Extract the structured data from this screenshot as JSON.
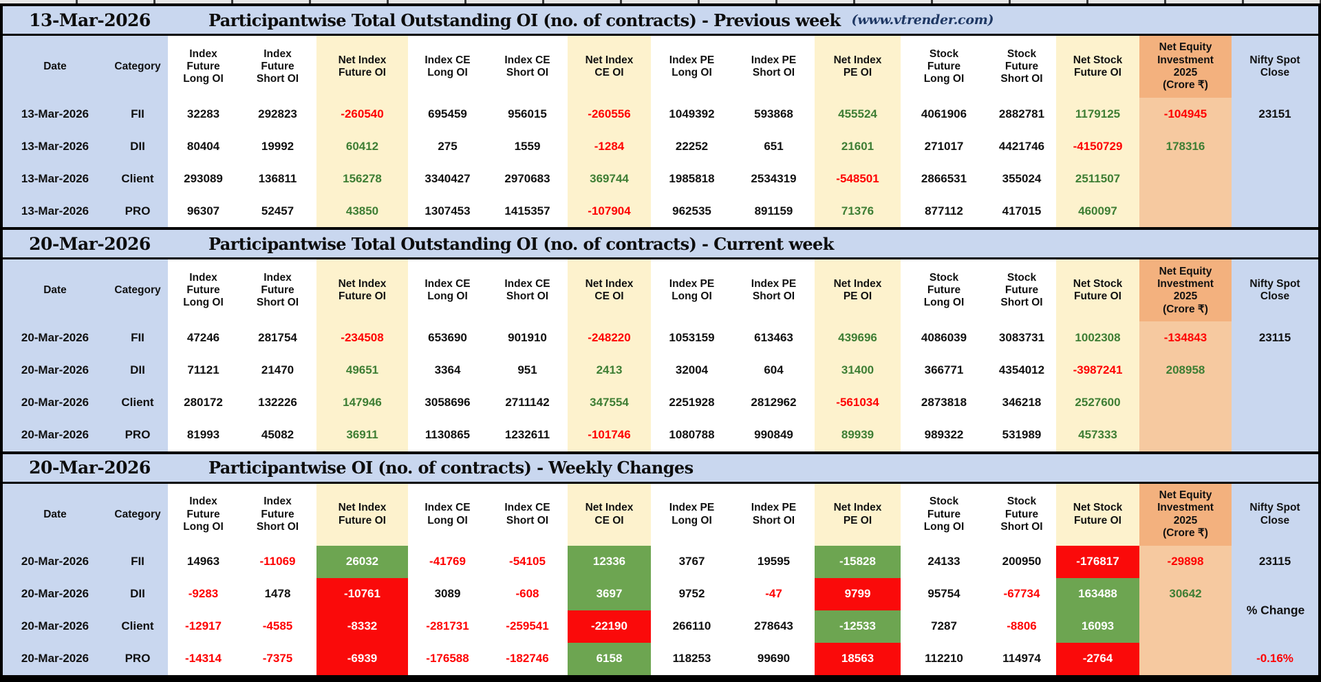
{
  "palette": {
    "band_blue": "#c9d7ef",
    "cream": "#fdf2cd",
    "orange_header": "#f3b17e",
    "orange_body": "#f6c9a0",
    "red_text": "#fe0000",
    "green_text": "#3e7e34",
    "green_bg": "#6da551",
    "red_bg": "#fa0a0a",
    "black_text": "#111111",
    "white_text": "#ffffff"
  },
  "columns": [
    {
      "key": "date",
      "label": "Date",
      "hbg": "blue",
      "bbg": "blue"
    },
    {
      "key": "category",
      "label": "Category",
      "hbg": "blue",
      "bbg": "blue"
    },
    {
      "key": "index-future-long-oi",
      "label": "Index\nFuture\nLong OI",
      "hbg": "white",
      "bbg": "white"
    },
    {
      "key": "index-future-short-oi",
      "label": "Index\nFuture\nShort OI",
      "hbg": "white",
      "bbg": "white"
    },
    {
      "key": "net-index-future-oi",
      "label": "Net Index\nFuture OI",
      "hbg": "cream",
      "bbg": "cream"
    },
    {
      "key": "index-ce-long-oi",
      "label": "Index CE\nLong OI",
      "hbg": "white",
      "bbg": "white"
    },
    {
      "key": "index-ce-short-oi",
      "label": "Index CE\nShort OI",
      "hbg": "white",
      "bbg": "white"
    },
    {
      "key": "net-index-ce-oi",
      "label": "Net Index\nCE OI",
      "hbg": "cream",
      "bbg": "cream"
    },
    {
      "key": "index-pe-long-oi",
      "label": "Index PE\nLong OI",
      "hbg": "white",
      "bbg": "white"
    },
    {
      "key": "index-pe-short-oi",
      "label": "Index PE\nShort OI",
      "hbg": "white",
      "bbg": "white"
    },
    {
      "key": "net-index-pe-oi",
      "label": "Net Index\nPE OI",
      "hbg": "cream",
      "bbg": "cream"
    },
    {
      "key": "stock-future-long-oi",
      "label": "Stock\nFuture\nLong OI",
      "hbg": "white",
      "bbg": "white"
    },
    {
      "key": "stock-future-short-oi",
      "label": "Stock\nFuture\nShort OI",
      "hbg": "white",
      "bbg": "white"
    },
    {
      "key": "net-stock-future-oi",
      "label": "Net Stock\nFuture OI",
      "hbg": "cream",
      "bbg": "cream"
    },
    {
      "key": "net-equity-investment",
      "label": "Net Equity\nInvestment\n2025\n(Crore ₹)",
      "hbg": "orangeh",
      "bbg": "orangeb"
    },
    {
      "key": "nifty-spot-close",
      "label": "Nifty Spot\nClose",
      "hbg": "blue",
      "bbg": "blue"
    }
  ],
  "sections": [
    {
      "id": "previous-week",
      "date": "13-Mar-2026",
      "title": "Participantwise Total Outstanding OI (no. of contracts) - Previous week",
      "source": "(www.vtrender.com)",
      "rows": [
        {
          "date": "13-Mar-2026",
          "category": "FII",
          "cells": [
            [
              "32283",
              "k"
            ],
            [
              "292823",
              "k"
            ],
            [
              "-260540",
              "r"
            ],
            [
              "695459",
              "k"
            ],
            [
              "956015",
              "k"
            ],
            [
              "-260556",
              "r"
            ],
            [
              "1049392",
              "k"
            ],
            [
              "593868",
              "k"
            ],
            [
              "455524",
              "g"
            ],
            [
              "4061906",
              "k"
            ],
            [
              "2882781",
              "k"
            ],
            [
              "1179125",
              "g"
            ],
            [
              "-104945",
              "r"
            ],
            [
              "23151",
              "k"
            ]
          ]
        },
        {
          "date": "13-Mar-2026",
          "category": "DII",
          "cells": [
            [
              "80404",
              "k"
            ],
            [
              "19992",
              "k"
            ],
            [
              "60412",
              "g"
            ],
            [
              "275",
              "k"
            ],
            [
              "1559",
              "k"
            ],
            [
              "-1284",
              "r"
            ],
            [
              "22252",
              "k"
            ],
            [
              "651",
              "k"
            ],
            [
              "21601",
              "g"
            ],
            [
              "271017",
              "k"
            ],
            [
              "4421746",
              "k"
            ],
            [
              "-4150729",
              "r"
            ],
            [
              "178316",
              "g"
            ],
            [
              "",
              ""
            ]
          ]
        },
        {
          "date": "13-Mar-2026",
          "category": "Client",
          "cells": [
            [
              "293089",
              "k"
            ],
            [
              "136811",
              "k"
            ],
            [
              "156278",
              "g"
            ],
            [
              "3340427",
              "k"
            ],
            [
              "2970683",
              "k"
            ],
            [
              "369744",
              "g"
            ],
            [
              "1985818",
              "k"
            ],
            [
              "2534319",
              "k"
            ],
            [
              "-548501",
              "r"
            ],
            [
              "2866531",
              "k"
            ],
            [
              "355024",
              "k"
            ],
            [
              "2511507",
              "g"
            ],
            [
              "",
              ""
            ],
            [
              "",
              ""
            ]
          ]
        },
        {
          "date": "13-Mar-2026",
          "category": "PRO",
          "cells": [
            [
              "96307",
              "k"
            ],
            [
              "52457",
              "k"
            ],
            [
              "43850",
              "g"
            ],
            [
              "1307453",
              "k"
            ],
            [
              "1415357",
              "k"
            ],
            [
              "-107904",
              "r"
            ],
            [
              "962535",
              "k"
            ],
            [
              "891159",
              "k"
            ],
            [
              "71376",
              "g"
            ],
            [
              "877112",
              "k"
            ],
            [
              "417015",
              "k"
            ],
            [
              "460097",
              "g"
            ],
            [
              "",
              ""
            ],
            [
              "",
              ""
            ]
          ]
        }
      ]
    },
    {
      "id": "current-week",
      "date": "20-Mar-2026",
      "title": "Participantwise Total Outstanding OI (no. of contracts) - Current week",
      "source": "",
      "rows": [
        {
          "date": "20-Mar-2026",
          "category": "FII",
          "cells": [
            [
              "47246",
              "k"
            ],
            [
              "281754",
              "k"
            ],
            [
              "-234508",
              "r"
            ],
            [
              "653690",
              "k"
            ],
            [
              "901910",
              "k"
            ],
            [
              "-248220",
              "r"
            ],
            [
              "1053159",
              "k"
            ],
            [
              "613463",
              "k"
            ],
            [
              "439696",
              "g"
            ],
            [
              "4086039",
              "k"
            ],
            [
              "3083731",
              "k"
            ],
            [
              "1002308",
              "g"
            ],
            [
              "-134843",
              "r"
            ],
            [
              "23115",
              "k"
            ]
          ]
        },
        {
          "date": "20-Mar-2026",
          "category": "DII",
          "cells": [
            [
              "71121",
              "k"
            ],
            [
              "21470",
              "k"
            ],
            [
              "49651",
              "g"
            ],
            [
              "3364",
              "k"
            ],
            [
              "951",
              "k"
            ],
            [
              "2413",
              "g"
            ],
            [
              "32004",
              "k"
            ],
            [
              "604",
              "k"
            ],
            [
              "31400",
              "g"
            ],
            [
              "366771",
              "k"
            ],
            [
              "4354012",
              "k"
            ],
            [
              "-3987241",
              "r"
            ],
            [
              "208958",
              "g"
            ],
            [
              "",
              ""
            ]
          ]
        },
        {
          "date": "20-Mar-2026",
          "category": "Client",
          "cells": [
            [
              "280172",
              "k"
            ],
            [
              "132226",
              "k"
            ],
            [
              "147946",
              "g"
            ],
            [
              "3058696",
              "k"
            ],
            [
              "2711142",
              "k"
            ],
            [
              "347554",
              "g"
            ],
            [
              "2251928",
              "k"
            ],
            [
              "2812962",
              "k"
            ],
            [
              "-561034",
              "r"
            ],
            [
              "2873818",
              "k"
            ],
            [
              "346218",
              "k"
            ],
            [
              "2527600",
              "g"
            ],
            [
              "",
              ""
            ],
            [
              "",
              ""
            ]
          ]
        },
        {
          "date": "20-Mar-2026",
          "category": "PRO",
          "cells": [
            [
              "81993",
              "k"
            ],
            [
              "45082",
              "k"
            ],
            [
              "36911",
              "g"
            ],
            [
              "1130865",
              "k"
            ],
            [
              "1232611",
              "k"
            ],
            [
              "-101746",
              "r"
            ],
            [
              "1080788",
              "k"
            ],
            [
              "990849",
              "k"
            ],
            [
              "89939",
              "g"
            ],
            [
              "989322",
              "k"
            ],
            [
              "531989",
              "k"
            ],
            [
              "457333",
              "g"
            ],
            [
              "",
              ""
            ],
            [
              "",
              ""
            ]
          ]
        }
      ]
    },
    {
      "id": "weekly-changes",
      "date": "20-Mar-2026",
      "title": "Participantwise OI (no. of contracts) - Weekly Changes",
      "source": "",
      "side_label": "% Change",
      "rows": [
        {
          "date": "20-Mar-2026",
          "category": "FII",
          "cells": [
            [
              "14963",
              "k"
            ],
            [
              "-11069",
              "r"
            ],
            [
              "26032",
              "G"
            ],
            [
              "-41769",
              "r"
            ],
            [
              "-54105",
              "r"
            ],
            [
              "12336",
              "G"
            ],
            [
              "3767",
              "k"
            ],
            [
              "19595",
              "k"
            ],
            [
              "-15828",
              "G"
            ],
            [
              "24133",
              "k"
            ],
            [
              "200950",
              "k"
            ],
            [
              "-176817",
              "R"
            ],
            [
              "-29898",
              "r"
            ],
            [
              "23115",
              "k"
            ]
          ]
        },
        {
          "date": "20-Mar-2026",
          "category": "DII",
          "cells": [
            [
              "-9283",
              "r"
            ],
            [
              "1478",
              "k"
            ],
            [
              "-10761",
              "R"
            ],
            [
              "3089",
              "k"
            ],
            [
              "-608",
              "r"
            ],
            [
              "3697",
              "G"
            ],
            [
              "9752",
              "k"
            ],
            [
              "-47",
              "r"
            ],
            [
              "9799",
              "R"
            ],
            [
              "95754",
              "k"
            ],
            [
              "-67734",
              "r"
            ],
            [
              "163488",
              "G"
            ],
            [
              "30642",
              "g"
            ],
            [
              "",
              ""
            ]
          ]
        },
        {
          "date": "20-Mar-2026",
          "category": "Client",
          "cells": [
            [
              "-12917",
              "r"
            ],
            [
              "-4585",
              "r"
            ],
            [
              "-8332",
              "R"
            ],
            [
              "-281731",
              "r"
            ],
            [
              "-259541",
              "r"
            ],
            [
              "-22190",
              "R"
            ],
            [
              "266110",
              "k"
            ],
            [
              "278643",
              "k"
            ],
            [
              "-12533",
              "G"
            ],
            [
              "7287",
              "k"
            ],
            [
              "-8806",
              "r"
            ],
            [
              "16093",
              "G"
            ],
            [
              "",
              ""
            ],
            [
              "",
              ""
            ]
          ]
        },
        {
          "date": "20-Mar-2026",
          "category": "PRO",
          "cells": [
            [
              "-14314",
              "r"
            ],
            [
              "-7375",
              "r"
            ],
            [
              "-6939",
              "R"
            ],
            [
              "-176588",
              "r"
            ],
            [
              "-182746",
              "r"
            ],
            [
              "6158",
              "G"
            ],
            [
              "118253",
              "k"
            ],
            [
              "99690",
              "k"
            ],
            [
              "18563",
              "R"
            ],
            [
              "112210",
              "k"
            ],
            [
              "114974",
              "k"
            ],
            [
              "-2764",
              "R"
            ],
            [
              "",
              ""
            ],
            [
              "-0.16%",
              "r"
            ]
          ]
        }
      ]
    }
  ]
}
